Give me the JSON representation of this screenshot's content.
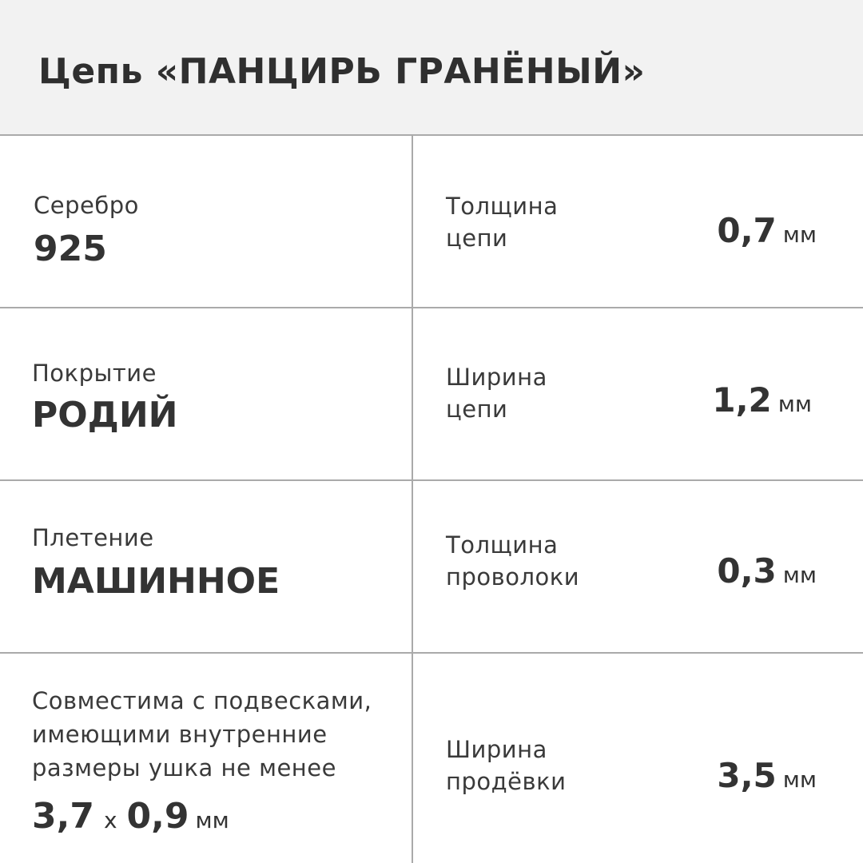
{
  "title": "Цепь «ПАНЦИРЬ ГРАНЁНЫЙ»",
  "left": [
    {
      "label": "Серебро",
      "value": "925"
    },
    {
      "label": "Покрытие",
      "value": "РОДИЙ"
    },
    {
      "label": "Плетение",
      "value": "МАШИННОЕ"
    },
    {
      "label": "Совместима с подвесками, имеющими внутренние размеры ушка не менее",
      "value_a": "3,7",
      "sep": "х",
      "value_b": "0,9",
      "unit": "мм"
    }
  ],
  "right": [
    {
      "label1": "Толщина",
      "label2": "цепи",
      "value": "0,7",
      "unit": "мм"
    },
    {
      "label1": "Ширина",
      "label2": "цепи",
      "value": "1,2",
      "unit": "мм"
    },
    {
      "label1": "Толщина",
      "label2": "проволоки",
      "value": "0,3",
      "unit": "мм"
    },
    {
      "label1": "Ширина",
      "label2": "продёвки",
      "value": "3,5",
      "unit": "мм"
    }
  ]
}
